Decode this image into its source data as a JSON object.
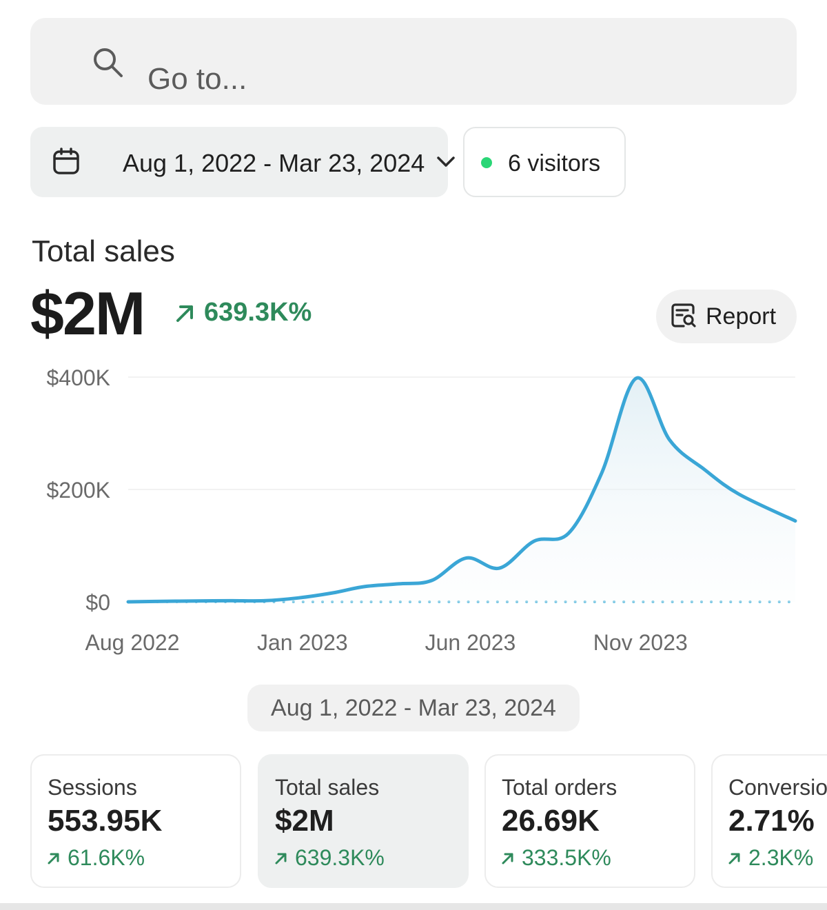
{
  "search": {
    "placeholder": "Go to..."
  },
  "filters": {
    "date_range": "Aug 1, 2022 - Mar 23, 2024",
    "visitors": "6 visitors",
    "visitor_dot_color": "#2ad676"
  },
  "summary": {
    "title": "Total sales",
    "value": "$2M",
    "change": "639.3K%",
    "report_label": "Report"
  },
  "range_label": "Aug 1, 2022 - Mar 23, 2024",
  "chart_data": {
    "type": "area",
    "title": "",
    "xlabel": "",
    "ylabel": "",
    "ylim": [
      0,
      400000
    ],
    "y_ticks": [
      "$400K",
      "$200K",
      "$0"
    ],
    "y_tick_values": [
      400000,
      200000,
      0
    ],
    "x_tick_labels": [
      "Aug 2022",
      "Jan 2023",
      "Jun 2023",
      "Nov 2023"
    ],
    "x_tick_dates": [
      "2022-08-01",
      "2023-01-01",
      "2023-06-01",
      "2023-11-01"
    ],
    "grid": true,
    "line_color": "#3aa6d6",
    "baseline_color": "#7cc8e4",
    "series": [
      {
        "x": [
          "2022-08-01",
          "2022-09-01",
          "2022-10-01",
          "2022-11-01",
          "2022-12-01",
          "2023-01-01",
          "2023-02-01",
          "2023-03-01",
          "2023-04-01",
          "2023-05-01",
          "2023-06-01",
          "2023-07-01",
          "2023-08-01",
          "2023-09-01",
          "2023-10-01",
          "2023-11-01",
          "2023-12-01",
          "2024-01-01",
          "2024-02-01",
          "2024-03-23"
        ],
        "values": [
          0,
          1000,
          1500,
          2000,
          2000,
          7000,
          16000,
          27000,
          32000,
          38000,
          78000,
          60000,
          108000,
          122000,
          230000,
          398000,
          288000,
          236000,
          192000,
          144000
        ]
      }
    ]
  },
  "metrics": [
    {
      "name": "Sessions",
      "value": "553.95K",
      "change": "61.6K%"
    },
    {
      "name": "Total sales",
      "value": "$2M",
      "change": "639.3K%"
    },
    {
      "name": "Total orders",
      "value": "26.69K",
      "change": "333.5K%"
    },
    {
      "name": "Conversion rate",
      "value": "2.71%",
      "change": "2.3K%"
    }
  ],
  "colors": {
    "positive": "#2e8a5b",
    "accent": "#3aa6d6"
  },
  "icons": {
    "search": "search-icon",
    "calendar": "calendar-icon",
    "chevron": "chevron-down-icon",
    "report": "report-search-icon",
    "trend": "arrow-up-right-icon"
  }
}
